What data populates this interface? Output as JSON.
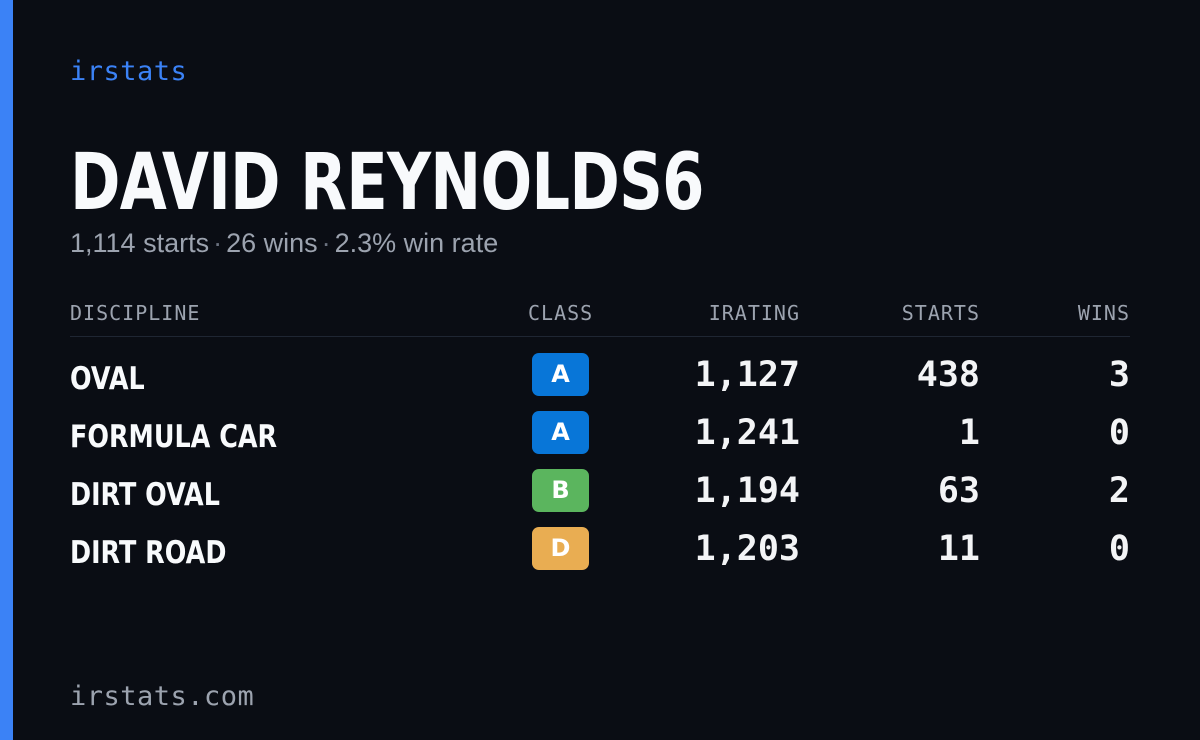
{
  "brand": {
    "label": "irstats",
    "accent_color": "#3b82f6"
  },
  "driver": {
    "name": "DAVID REYNOLDS6"
  },
  "summary": {
    "starts": "1,114 starts",
    "wins": "26 wins",
    "win_rate": "2.3% win rate",
    "separator": "·"
  },
  "table": {
    "headers": {
      "discipline": "DISCIPLINE",
      "class": "CLASS",
      "irating": "IRATING",
      "starts": "STARTS",
      "wins": "WINS"
    },
    "rows": [
      {
        "discipline": "OVAL",
        "class": "A",
        "class_color": "#0876d8",
        "irating": "1,127",
        "starts": "438",
        "wins": "3"
      },
      {
        "discipline": "FORMULA CAR",
        "class": "A",
        "class_color": "#0876d8",
        "irating": "1,241",
        "starts": "1",
        "wins": "0"
      },
      {
        "discipline": "DIRT OVAL",
        "class": "B",
        "class_color": "#5bb55e",
        "irating": "1,194",
        "starts": "63",
        "wins": "2"
      },
      {
        "discipline": "DIRT ROAD",
        "class": "D",
        "class_color": "#e9ad52",
        "irating": "1,203",
        "starts": "11",
        "wins": "0"
      }
    ]
  },
  "footer": {
    "url": "irstats.com"
  }
}
